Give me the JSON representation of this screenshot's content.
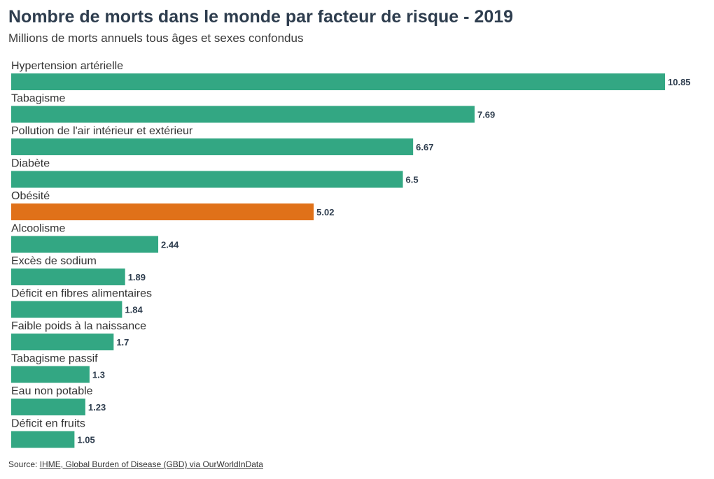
{
  "chart_data": {
    "type": "bar",
    "orientation": "horizontal",
    "title": "Nombre de morts dans le monde par facteur de risque - 2019",
    "subtitle": "Millions de morts annuels tous âges et sexes confondus",
    "categories": [
      "Hypertension artérielle",
      "Tabagisme",
      "Pollution de l'air intérieur et extérieur",
      "Diabète",
      "Obésité",
      "Alcoolisme",
      "Excès de sodium",
      "Déficit en fibres alimentaires",
      "Faible poids à la naissance",
      "Tabagisme passif",
      "Eau non potable",
      "Déficit en fruits"
    ],
    "values": [
      10.85,
      7.69,
      6.67,
      6.5,
      5.02,
      2.44,
      1.89,
      1.84,
      1.7,
      1.3,
      1.23,
      1.05
    ],
    "value_labels": [
      "10.85",
      "7.69",
      "6.67",
      "6.5",
      "5.02",
      "2.44",
      "1.89",
      "1.84",
      "1.7",
      "1.3",
      "1.23",
      "1.05"
    ],
    "highlight_index": 4,
    "colors": {
      "bar": "#33a783",
      "highlight": "#e07119",
      "title": "#2e3d4e"
    },
    "grid": false,
    "legend": "none",
    "xlim": [
      0,
      10.85
    ]
  },
  "source": {
    "prefix": "Source: ",
    "link_text": "IHME, Global Burden of Disease (GBD) via OurWorldInData"
  }
}
